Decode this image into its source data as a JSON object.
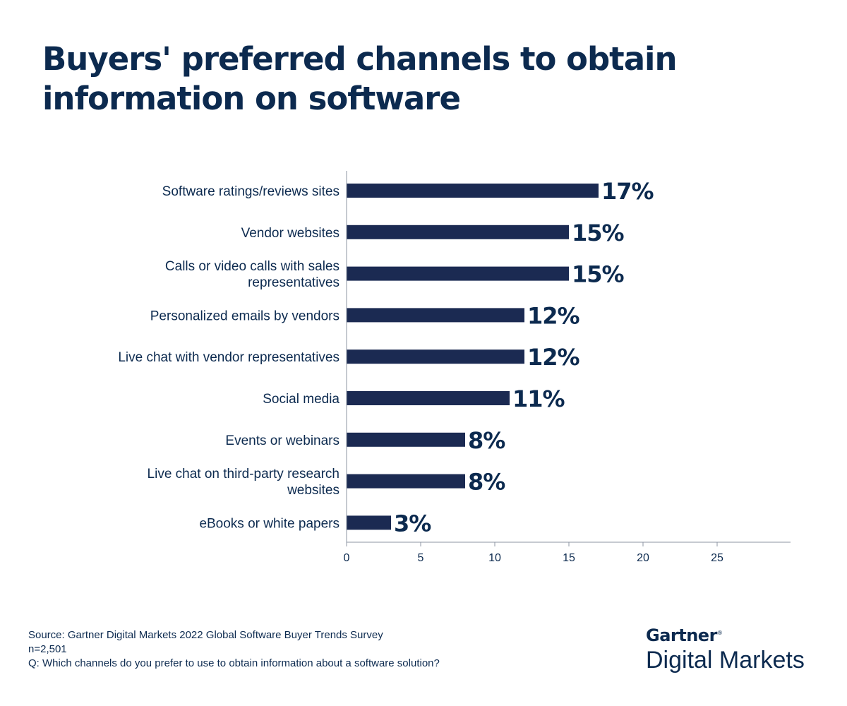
{
  "chart_data": {
    "type": "bar",
    "orientation": "horizontal",
    "title": "Buyers' preferred channels to obtain information on software",
    "categories": [
      "Software ratings/reviews sites",
      "Vendor websites",
      "Calls or video calls with sales representatives",
      "Personalized emails by vendors",
      "Live chat with vendor representatives",
      "Social media",
      "Events or webinars",
      "Live chat on third-party research websites",
      "eBooks or white papers"
    ],
    "category_lines": [
      [
        "Software ratings/reviews sites"
      ],
      [
        "Vendor websites"
      ],
      [
        "Calls or video calls with sales",
        "representatives"
      ],
      [
        "Personalized emails by vendors"
      ],
      [
        "Live chat with vendor representatives"
      ],
      [
        "Social media"
      ],
      [
        "Events or webinars"
      ],
      [
        "Live chat on third-party research",
        "websites"
      ],
      [
        "eBooks or white papers"
      ]
    ],
    "values": [
      17,
      15,
      15,
      12,
      12,
      11,
      8,
      8,
      3
    ],
    "value_labels": [
      "17%",
      "15%",
      "15%",
      "12%",
      "12%",
      "11%",
      "8%",
      "8%",
      "3%"
    ],
    "xticks": [
      0,
      5,
      10,
      15,
      20,
      25
    ],
    "xlim": [
      0,
      30
    ],
    "grid": false,
    "legend": "none",
    "bar_color": "#1b2a52"
  },
  "footer": {
    "source": "Source: Gartner Digital Markets 2022 Global Software Buyer Trends Survey",
    "sample": "n=2,501",
    "question": "Q: Which channels do you prefer to use to obtain information about a software solution?"
  },
  "logo": {
    "top": "Gartner",
    "mark": "®",
    "bottom": "Digital Markets"
  },
  "colors": {
    "text": "#0c2a4f",
    "bar": "#1b2a52"
  }
}
